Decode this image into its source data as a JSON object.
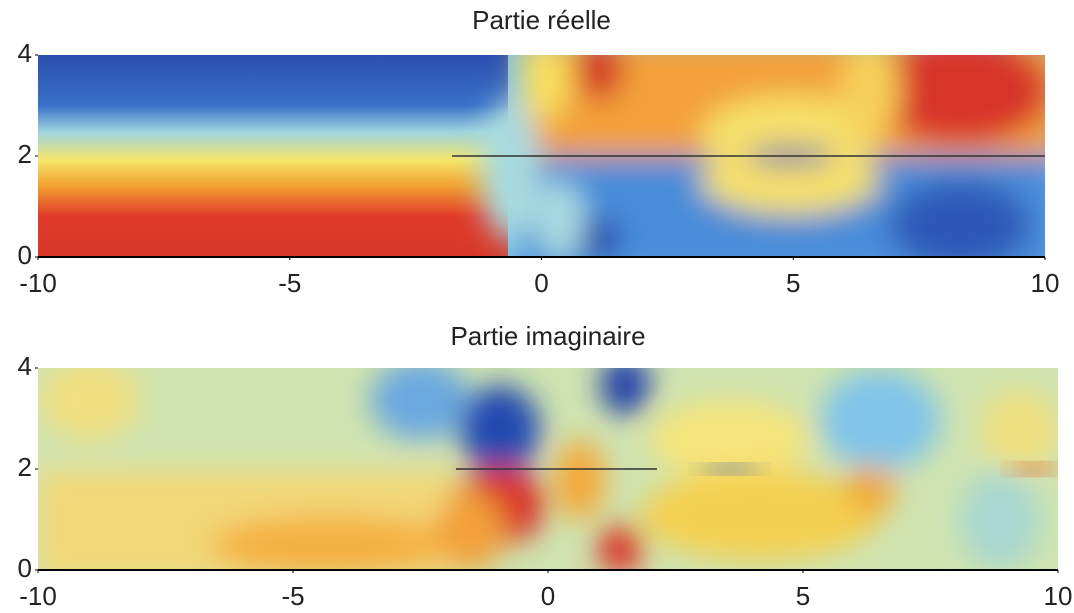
{
  "chart_data": [
    {
      "type": "heatmap",
      "title": "Partie réelle",
      "xlim": [
        -10,
        10
      ],
      "ylim": [
        0,
        4
      ],
      "xticks": [
        -10,
        -5,
        0,
        5,
        10
      ],
      "yticks": [
        0,
        2,
        4
      ]
    },
    {
      "type": "heatmap",
      "title": "Partie imaginaire",
      "xlim": [
        -10,
        10
      ],
      "ylim": [
        0,
        4
      ],
      "xticks": [
        -10,
        -5,
        0,
        5,
        10
      ],
      "yticks": [
        0,
        2,
        4
      ]
    }
  ]
}
